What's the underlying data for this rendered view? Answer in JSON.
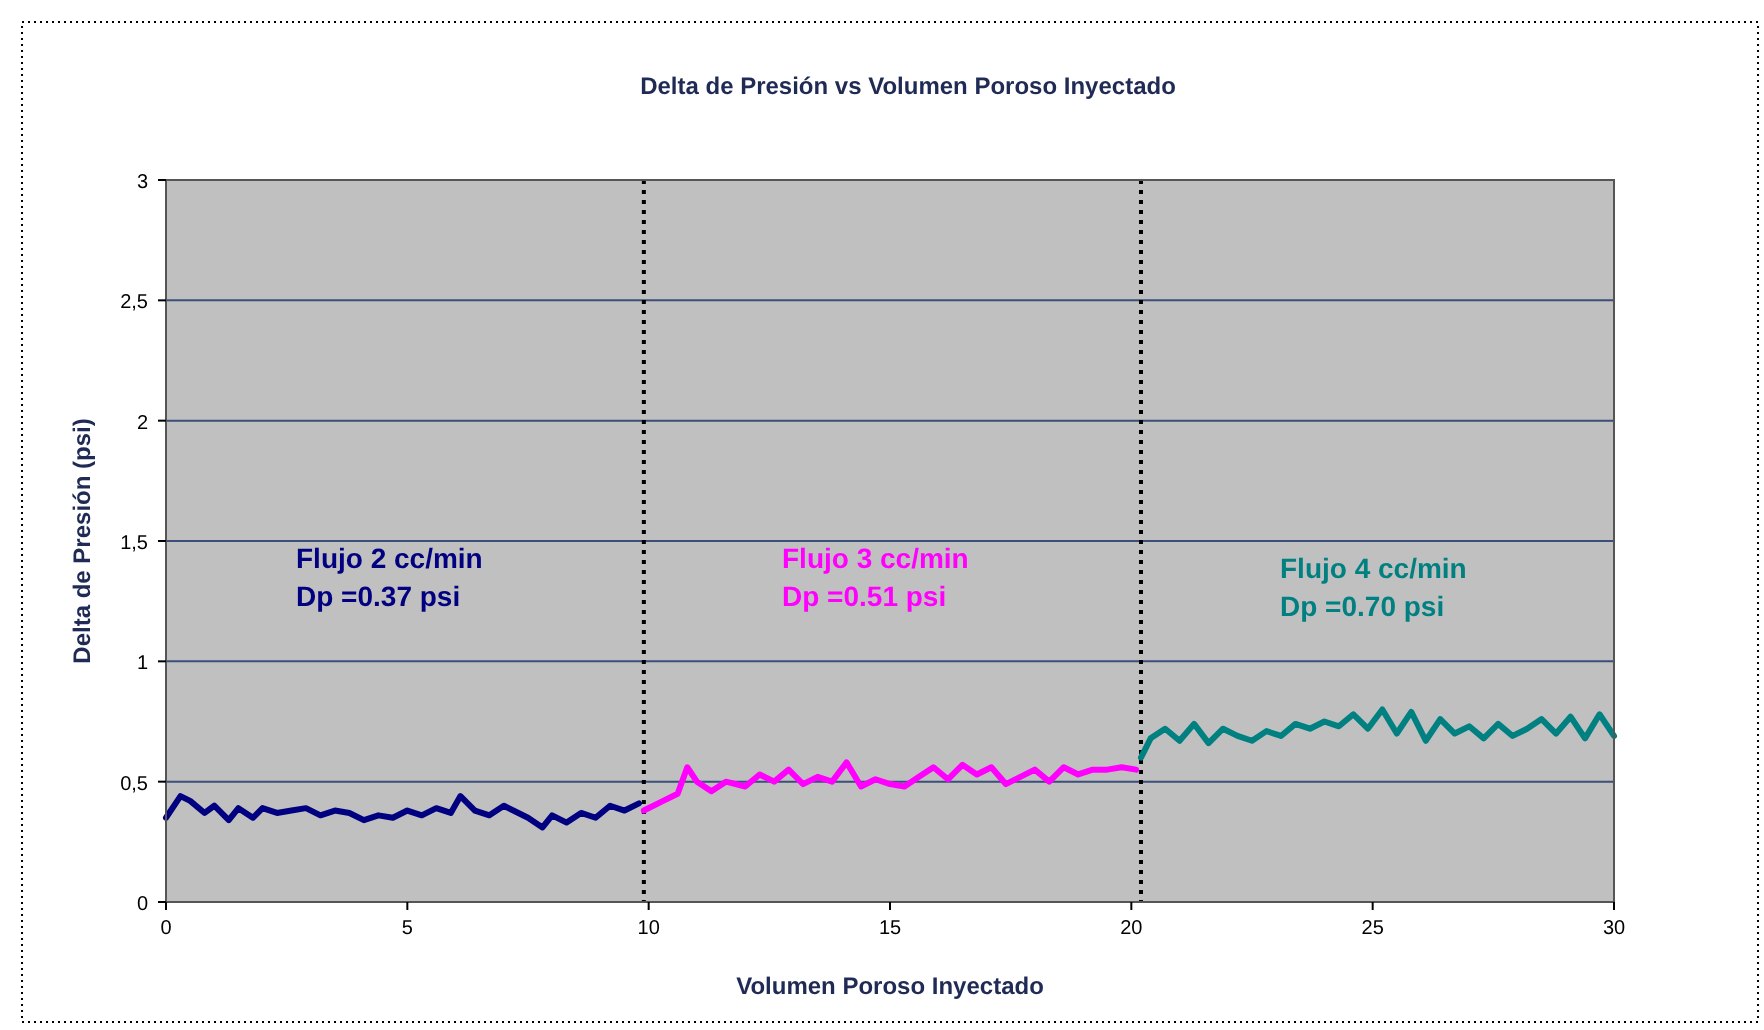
{
  "chart_data": {
    "type": "line",
    "title": "Delta de Presión vs Volumen Poroso Inyectado",
    "xlabel": "Volumen Poroso Inyectado",
    "ylabel": "Delta de Presión (psi)",
    "xlim": [
      0,
      30
    ],
    "xticks": [
      0,
      5,
      10,
      15,
      20,
      25,
      30
    ],
    "ylim": [
      0,
      3
    ],
    "yticks": [
      0,
      {
        "value": 0.5,
        "label": "0,5"
      },
      1,
      {
        "value": 1.5,
        "label": "1,5"
      },
      2,
      {
        "value": 2.5,
        "label": "2,5"
      },
      3
    ],
    "grid": "y",
    "marker": "none",
    "line_style": "solid",
    "series": [
      {
        "color": "#000080",
        "x": [
          0,
          0.3,
          0.5,
          0.8,
          1,
          1.3,
          1.5,
          1.8,
          2,
          2.3,
          2.6,
          2.9,
          3.2,
          3.5,
          3.8,
          4.1,
          4.4,
          4.7,
          5,
          5.3,
          5.6,
          5.9,
          6.1,
          6.4,
          6.7,
          7,
          7.3,
          7.5,
          7.8,
          8,
          8.3,
          8.6,
          8.9,
          9.2,
          9.5,
          9.8
        ],
        "values": [
          0.35,
          0.44,
          0.42,
          0.37,
          0.4,
          0.34,
          0.39,
          0.35,
          0.39,
          0.37,
          0.38,
          0.39,
          0.36,
          0.38,
          0.37,
          0.34,
          0.36,
          0.35,
          0.38,
          0.36,
          0.39,
          0.37,
          0.44,
          0.38,
          0.36,
          0.4,
          0.37,
          0.35,
          0.31,
          0.36,
          0.33,
          0.37,
          0.35,
          0.4,
          0.38,
          0.41
        ]
      },
      {
        "color": "#ff00ff",
        "x": [
          9.9,
          10.3,
          10.6,
          10.8,
          11,
          11.3,
          11.6,
          12,
          12.3,
          12.6,
          12.9,
          13.2,
          13.5,
          13.8,
          14.1,
          14.4,
          14.7,
          15,
          15.3,
          15.6,
          15.9,
          16.2,
          16.5,
          16.8,
          17.1,
          17.4,
          17.7,
          18,
          18.3,
          18.6,
          18.9,
          19.2,
          19.5,
          19.8,
          20.1
        ],
        "values": [
          0.38,
          0.42,
          0.45,
          0.56,
          0.5,
          0.46,
          0.5,
          0.48,
          0.53,
          0.5,
          0.55,
          0.49,
          0.52,
          0.5,
          0.58,
          0.48,
          0.51,
          0.49,
          0.48,
          0.52,
          0.56,
          0.51,
          0.57,
          0.53,
          0.56,
          0.49,
          0.52,
          0.55,
          0.5,
          0.56,
          0.53,
          0.55,
          0.55,
          0.56,
          0.55
        ]
      },
      {
        "color": "#008080",
        "x": [
          20.2,
          20.4,
          20.7,
          21,
          21.3,
          21.6,
          21.9,
          22.2,
          22.5,
          22.8,
          23.1,
          23.4,
          23.7,
          24,
          24.3,
          24.6,
          24.9,
          25.2,
          25.5,
          25.8,
          26.1,
          26.4,
          26.7,
          27,
          27.3,
          27.6,
          27.9,
          28.2,
          28.5,
          28.8,
          29.1,
          29.4,
          29.7,
          30
        ],
        "values": [
          0.6,
          0.68,
          0.72,
          0.67,
          0.74,
          0.66,
          0.72,
          0.69,
          0.67,
          0.71,
          0.69,
          0.74,
          0.72,
          0.75,
          0.73,
          0.78,
          0.72,
          0.8,
          0.7,
          0.79,
          0.67,
          0.76,
          0.7,
          0.73,
          0.68,
          0.74,
          0.69,
          0.72,
          0.76,
          0.7,
          0.77,
          0.68,
          0.78,
          0.69
        ]
      }
    ],
    "ref_lines": [
      {
        "axis": "x",
        "value": 9.9,
        "color": "#000000",
        "line_style": "dotted"
      },
      {
        "axis": "x",
        "value": 20.2,
        "color": "#000000",
        "line_style": "dotted"
      }
    ],
    "annotations": [
      "Flujo 2 cc/min",
      "Dp =0.37 psi",
      "Flujo 3 cc/min",
      "Dp =0.51 psi",
      "Flujo 4 cc/min",
      "Dp =0.70 psi"
    ]
  }
}
